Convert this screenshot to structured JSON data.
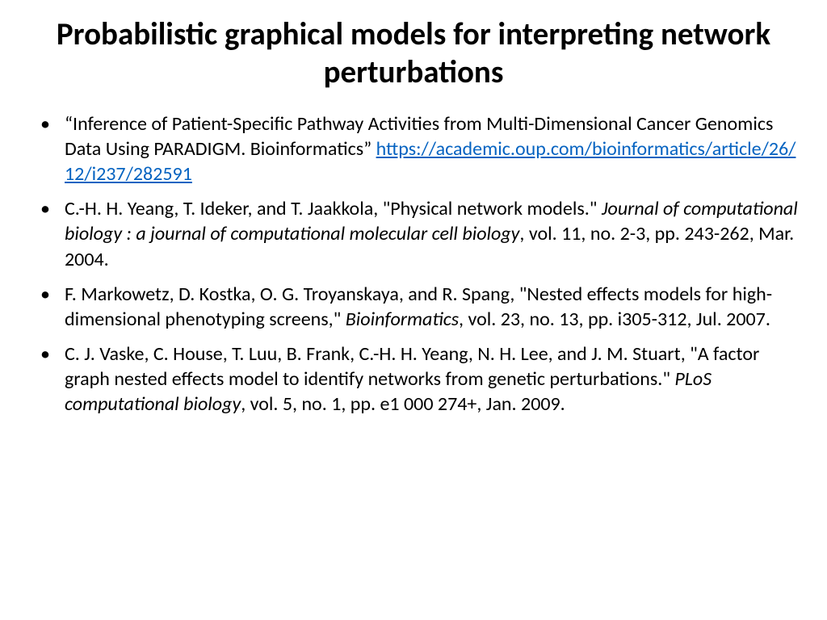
{
  "title": "Probabilistic graphical models for interpreting network perturbations",
  "bullets": [
    {
      "prefix": "“Inference of Patient-Specific Pathway Activities from Multi-Dimensional Cancer Genomics Data Using PARADIGM. Bioinformatics” ",
      "link": "https://academic.oup.com/bioinformatics/article/26/12/i237/282591"
    },
    {
      "text1": "C.-H. H. Yeang, T. Ideker, and T. Jaakkola, \"Physical network models.\" ",
      "italic": "Journal of computational biology : a journal of computational molecular cell biology",
      "text2": ", vol. 11, no. 2-3, pp. 243-262, Mar. 2004."
    },
    {
      "text1": "F. Markowetz, D. Kostka, O. G. Troyanskaya, and R. Spang, \"Nested effects models for high-dimensional phenotyping screens,\" ",
      "italic": "Bioinformatics",
      "text2": ", vol. 23, no. 13, pp. i305-312, Jul. 2007."
    },
    {
      "text1": " C. J. Vaske, C. House, T. Luu, B. Frank, C.-H. H. Yeang, N. H. Lee, and J. M. Stuart, \"A factor graph nested effects model to identify networks from genetic perturbations.\" ",
      "italic": "PLoS computational biology",
      "text2": ", vol. 5, no. 1, pp. e1 000 274+, Jan. 2009."
    }
  ]
}
